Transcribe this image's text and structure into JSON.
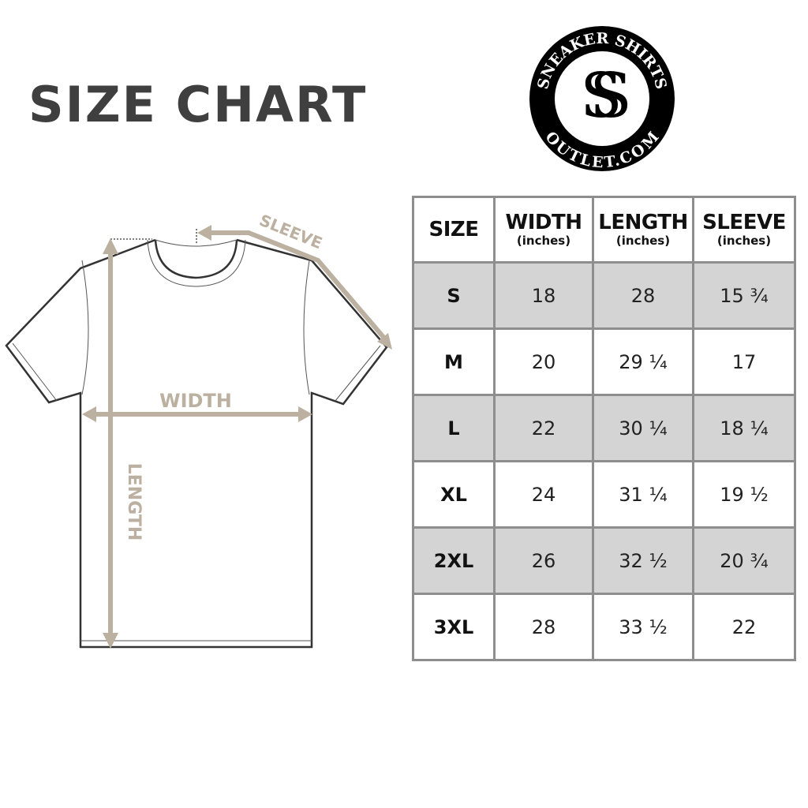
{
  "title": "SIZE CHART",
  "logo": {
    "top_text": "SNEAKER SHIRTS",
    "bottom_text": "OUTLET.COM",
    "monogram": "SS"
  },
  "diagram": {
    "sleeve_label": "SLEEVE",
    "width_label": "WIDTH",
    "length_label": "LENGTH",
    "arrow_color": "#bcb0a1"
  },
  "table": {
    "headers": [
      {
        "label": "SIZE",
        "unit": ""
      },
      {
        "label": "WIDTH",
        "unit": "(inches)"
      },
      {
        "label": "LENGTH",
        "unit": "(inches)"
      },
      {
        "label": "SLEEVE",
        "unit": "(inches)"
      }
    ],
    "rows": [
      [
        "S",
        "18",
        "28",
        "15 ¾"
      ],
      [
        "M",
        "20",
        "29 ¼",
        "17"
      ],
      [
        "L",
        "22",
        "30 ¼",
        "18 ¼"
      ],
      [
        "XL",
        "24",
        "31 ¼",
        "19 ½"
      ],
      [
        "2XL",
        "26",
        "32 ½",
        "20 ¾"
      ],
      [
        "3XL",
        "28",
        "33 ½",
        "22"
      ]
    ],
    "shade_color": "#d4d4d4"
  }
}
